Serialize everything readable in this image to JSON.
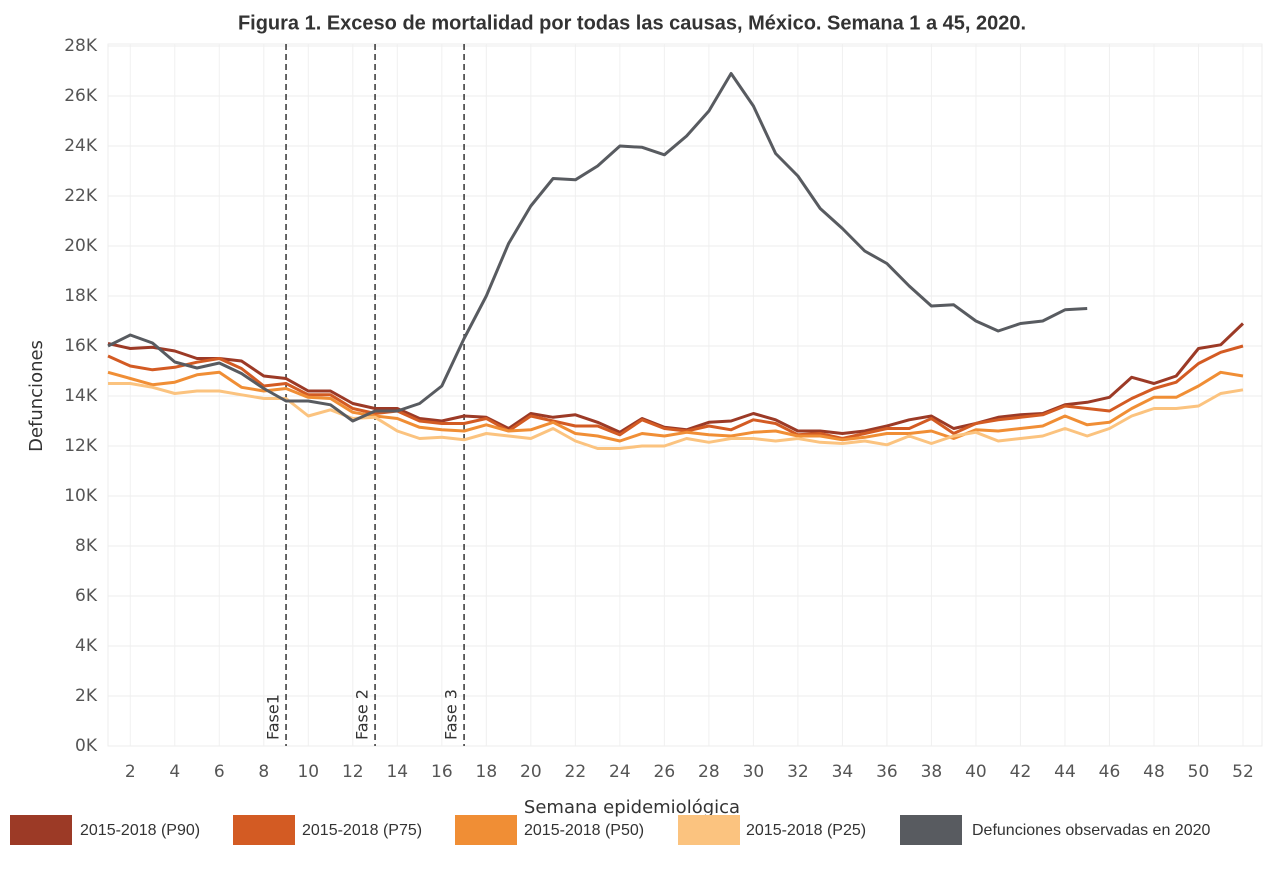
{
  "chart_data": {
    "type": "line",
    "title": "Figura 1. Exceso de mortalidad por todas las causas, México. Semana 1 a 45, 2020.",
    "x_label": "Semana epidemiológica",
    "y_label": "Defunciones",
    "x": [
      1,
      2,
      3,
      4,
      5,
      6,
      7,
      8,
      9,
      10,
      11,
      12,
      13,
      14,
      15,
      16,
      17,
      18,
      19,
      20,
      21,
      22,
      23,
      24,
      25,
      26,
      27,
      28,
      29,
      30,
      31,
      32,
      33,
      34,
      35,
      36,
      37,
      38,
      39,
      40,
      41,
      42,
      43,
      44,
      45,
      46,
      47,
      48,
      49,
      50,
      51,
      52
    ],
    "xlim": [
      1,
      52
    ],
    "xticks": [
      2,
      4,
      6,
      8,
      10,
      12,
      14,
      16,
      18,
      20,
      22,
      24,
      26,
      28,
      30,
      32,
      34,
      36,
      38,
      40,
      42,
      44,
      46,
      48,
      50,
      52
    ],
    "ylim": [
      0,
      28000
    ],
    "yticks": [
      {
        "value": 0,
        "label": "0K"
      },
      {
        "value": 2000,
        "label": "2K"
      },
      {
        "value": 4000,
        "label": "4K"
      },
      {
        "value": 6000,
        "label": "6K"
      },
      {
        "value": 8000,
        "label": "8K"
      },
      {
        "value": 10000,
        "label": "10K"
      },
      {
        "value": 12000,
        "label": "12K"
      },
      {
        "value": 14000,
        "label": "14K"
      },
      {
        "value": 16000,
        "label": "16K"
      },
      {
        "value": 18000,
        "label": "18K"
      },
      {
        "value": 20000,
        "label": "20K"
      },
      {
        "value": 22000,
        "label": "22K"
      },
      {
        "value": 24000,
        "label": "24K"
      },
      {
        "value": 26000,
        "label": "26K"
      },
      {
        "value": 28000,
        "label": "28K"
      }
    ],
    "grid": true,
    "annotations": [
      {
        "x": 9,
        "label": "Fase1"
      },
      {
        "x": 13,
        "label": "Fase 2"
      },
      {
        "x": 17,
        "label": "Fase 3"
      }
    ],
    "series": [
      {
        "name": "2015-2018 (P90)",
        "color": "#9c3a26",
        "values": [
          16100,
          15900,
          15950,
          15800,
          15500,
          15500,
          15400,
          14800,
          14700,
          14200,
          14200,
          13700,
          13500,
          13500,
          13100,
          13000,
          13200,
          13150,
          12700,
          13300,
          13150,
          13250,
          12950,
          12550,
          13100,
          12750,
          12650,
          12950,
          13000,
          13300,
          13050,
          12600,
          12600,
          12500,
          12600,
          12800,
          13050,
          13200,
          12700,
          12900,
          13150,
          13250,
          13300,
          13650,
          13750,
          13950,
          14750,
          14500,
          14800,
          15900,
          16050,
          16900
        ]
      },
      {
        "name": "2015-2018 (P75)",
        "color": "#d35b23",
        "values": [
          15600,
          15200,
          15050,
          15150,
          15350,
          15500,
          15100,
          14400,
          14500,
          14050,
          14050,
          13500,
          13300,
          13400,
          13000,
          12900,
          12900,
          13100,
          12600,
          13200,
          13000,
          12800,
          12800,
          12450,
          13050,
          12700,
          12600,
          12800,
          12650,
          13050,
          12900,
          12450,
          12500,
          12300,
          12500,
          12700,
          12700,
          13100,
          12500,
          12900,
          13050,
          13150,
          13250,
          13600,
          13500,
          13400,
          13900,
          14300,
          14550,
          15300,
          15750,
          16000
        ]
      },
      {
        "name": "2015-2018 (P50)",
        "color": "#f08e35",
        "values": [
          14950,
          14700,
          14450,
          14550,
          14850,
          14950,
          14350,
          14200,
          14300,
          13950,
          13900,
          13350,
          13200,
          13100,
          12750,
          12650,
          12600,
          12850,
          12600,
          12650,
          12950,
          12500,
          12400,
          12200,
          12500,
          12400,
          12550,
          12450,
          12400,
          12550,
          12600,
          12400,
          12400,
          12250,
          12350,
          12500,
          12500,
          12600,
          12300,
          12650,
          12600,
          12700,
          12800,
          13200,
          12850,
          12950,
          13500,
          13950,
          13950,
          14400,
          14950,
          14800
        ]
      },
      {
        "name": "2015-2018 (P25)",
        "color": "#fbc37f",
        "values": [
          14500,
          14500,
          14350,
          14100,
          14200,
          14200,
          14050,
          13900,
          13900,
          13200,
          13450,
          13100,
          13150,
          12600,
          12300,
          12350,
          12250,
          12500,
          12400,
          12300,
          12700,
          12200,
          11900,
          11900,
          12000,
          12000,
          12300,
          12150,
          12300,
          12300,
          12200,
          12300,
          12150,
          12100,
          12200,
          12050,
          12400,
          12100,
          12400,
          12550,
          12200,
          12300,
          12400,
          12700,
          12400,
          12700,
          13200,
          13500,
          13500,
          13600,
          14100,
          14250
        ]
      },
      {
        "name": "Defunciones observadas en 2020",
        "color": "#585b60",
        "values": [
          16000,
          16440,
          16120,
          15360,
          15120,
          15320,
          14900,
          14300,
          13800,
          13800,
          13650,
          13000,
          13400,
          13400,
          13700,
          14400,
          16300,
          18000,
          20100,
          21600,
          22700,
          22650,
          23200,
          24000,
          23950,
          23650,
          24400,
          25400,
          26900,
          25600,
          23700,
          22800,
          21500,
          20700,
          19800,
          19300,
          18400,
          17600,
          17650,
          17000,
          16600,
          16900,
          17000,
          17450,
          17500,
          null,
          null,
          null,
          null,
          null,
          null,
          null
        ]
      }
    ]
  }
}
